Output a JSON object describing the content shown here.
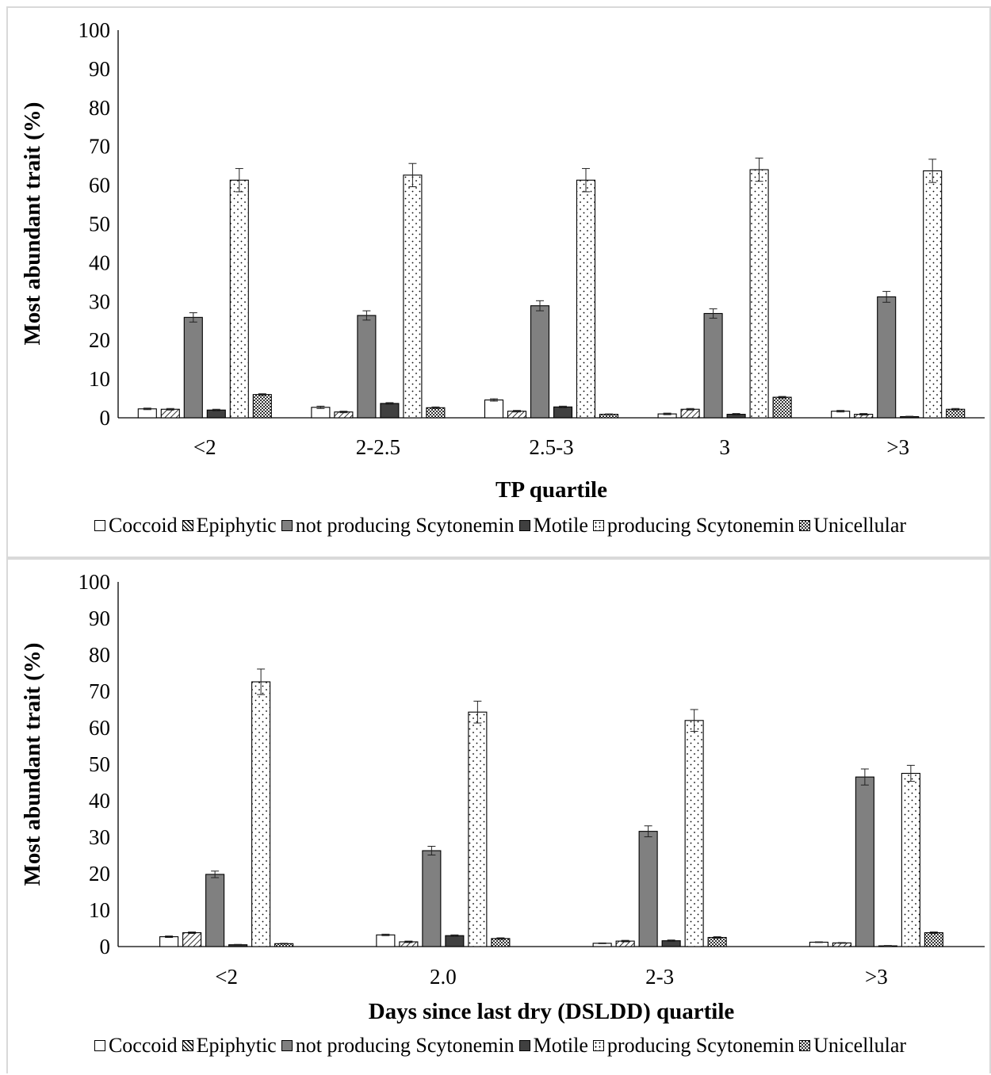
{
  "chart_data": [
    {
      "type": "bar",
      "xlabel": "TP quartile",
      "ylabel": "Most abundant trait (%)",
      "ylim": [
        0,
        100
      ],
      "yticks": [
        0,
        10,
        20,
        30,
        40,
        50,
        60,
        70,
        80,
        90,
        100
      ],
      "categories": [
        "<2",
        "2-2.5",
        "2.5-3",
        "3",
        ">3"
      ],
      "legend_position": "bottom",
      "series": [
        {
          "name": "Coccoid",
          "values": [
            2.3,
            2.7,
            4.6,
            1.0,
            1.7
          ],
          "errors": [
            0.2,
            0.3,
            0.3,
            0.2,
            0.2
          ]
        },
        {
          "name": "Epiphytic",
          "values": [
            2.2,
            1.5,
            1.7,
            2.2,
            0.9
          ],
          "errors": [
            0.2,
            0.2,
            0.2,
            0.2,
            0.2
          ]
        },
        {
          "name": "not producing Scytonemin",
          "values": [
            25.9,
            26.4,
            28.9,
            26.9,
            31.2
          ],
          "errors": [
            1.2,
            1.2,
            1.3,
            1.2,
            1.4
          ]
        },
        {
          "name": "Motile",
          "values": [
            2.0,
            3.7,
            2.8,
            0.9,
            0.3
          ],
          "errors": [
            0.2,
            0.2,
            0.2,
            0.2,
            0.1
          ]
        },
        {
          "name": "producing Scytonemin",
          "values": [
            61.3,
            62.6,
            61.3,
            64.0,
            63.7
          ],
          "errors": [
            3.0,
            3.0,
            3.0,
            3.0,
            3.0
          ]
        },
        {
          "name": "Unicellular",
          "values": [
            6.0,
            2.6,
            0.9,
            5.3,
            2.2
          ],
          "errors": [
            0.2,
            0.2,
            0.1,
            0.2,
            0.2
          ]
        }
      ]
    },
    {
      "type": "bar",
      "xlabel": "Days since last dry (DSLDD) quartile",
      "ylabel": "Most abundant trait (%)",
      "ylim": [
        0,
        100
      ],
      "yticks": [
        0,
        10,
        20,
        30,
        40,
        50,
        60,
        70,
        80,
        90,
        100
      ],
      "categories": [
        "<2",
        "2.0",
        "2-3",
        ">3"
      ],
      "legend_position": "bottom",
      "series": [
        {
          "name": "Coccoid",
          "values": [
            2.7,
            3.2,
            0.9,
            1.2
          ],
          "errors": [
            0.2,
            0.2,
            0.1,
            0.1
          ]
        },
        {
          "name": "Epiphytic",
          "values": [
            3.8,
            1.3,
            1.5,
            1.0
          ],
          "errors": [
            0.2,
            0.2,
            0.2,
            0.1
          ]
        },
        {
          "name": "not producing Scytonemin",
          "values": [
            19.8,
            26.3,
            31.6,
            46.5
          ],
          "errors": [
            0.9,
            1.2,
            1.5,
            2.2
          ]
        },
        {
          "name": "Motile",
          "values": [
            0.5,
            3.0,
            1.6,
            0.2
          ],
          "errors": [
            0.1,
            0.2,
            0.2,
            0.1
          ]
        },
        {
          "name": "producing Scytonemin",
          "values": [
            72.6,
            64.3,
            62.0,
            47.5
          ],
          "errors": [
            3.5,
            3.0,
            3.0,
            2.2
          ]
        },
        {
          "name": "Unicellular",
          "values": [
            0.8,
            2.2,
            2.5,
            3.8
          ],
          "errors": [
            0.1,
            0.2,
            0.2,
            0.2
          ]
        }
      ]
    }
  ]
}
